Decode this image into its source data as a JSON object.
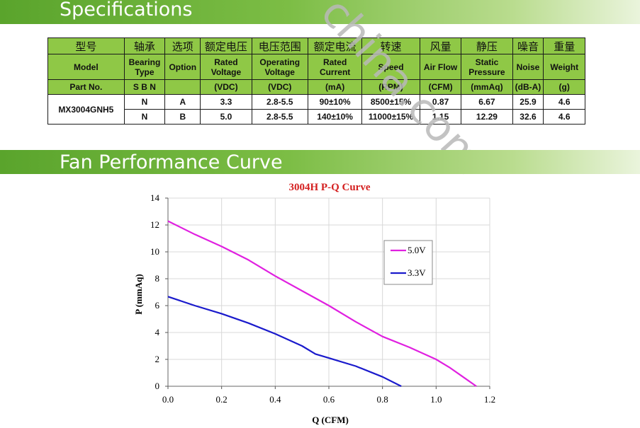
{
  "sections": {
    "specifications": "Specifications",
    "performance": "Fan Performance Curve"
  },
  "table": {
    "header_cn": [
      "型号",
      "轴承",
      "选项",
      "额定电压",
      "电压范围",
      "额定电流",
      "转速",
      "风量",
      "静压",
      "噪音",
      "重量"
    ],
    "header_en": [
      "Model",
      "Bearing Type",
      "Option",
      "Rated Voltage",
      "Operating Voltage",
      "Rated Current",
      "Speed",
      "Air Flow",
      "Static Pressure",
      "Noise",
      "Weight"
    ],
    "header_unit": [
      "Part No.",
      "S B N",
      "",
      "(VDC)",
      "(VDC)",
      "(mA)",
      "(RPM)",
      "(CFM)",
      "(mmAq)",
      "(dB-A)",
      "(g)"
    ],
    "model": "MX3004GNH5",
    "rows": [
      [
        "N",
        "A",
        "3.3",
        "2.8-5.5",
        "90±10%",
        "8500±15%",
        "0.87",
        "6.67",
        "25.9",
        "4.6"
      ],
      [
        "N",
        "B",
        "5.0",
        "2.8-5.5",
        "140±10%",
        "11000±15%",
        "1.15",
        "12.29",
        "32.6",
        "4.6"
      ]
    ]
  },
  "watermark": "china.com",
  "chart_data": {
    "type": "line",
    "title": "3004H P-Q Curve",
    "xlabel": "Q (CFM)",
    "ylabel": "P (mmAq)",
    "xlim": [
      0,
      1.2
    ],
    "ylim": [
      0,
      14
    ],
    "xticks": [
      "0.0",
      "0.2",
      "0.4",
      "0.6",
      "0.8",
      "1.0",
      "1.2"
    ],
    "yticks": [
      "0",
      "2",
      "4",
      "6",
      "8",
      "10",
      "12",
      "14"
    ],
    "grid": true,
    "legend": "right",
    "series": [
      {
        "name": "5.0V",
        "color": "#e020e0",
        "x": [
          0,
          0.1,
          0.2,
          0.3,
          0.4,
          0.5,
          0.6,
          0.7,
          0.8,
          0.9,
          1.0,
          1.05,
          1.1,
          1.15
        ],
        "y": [
          12.29,
          11.3,
          10.4,
          9.4,
          8.2,
          7.1,
          6.0,
          4.8,
          3.7,
          2.9,
          2.0,
          1.4,
          0.7,
          0
        ]
      },
      {
        "name": "3.3V",
        "color": "#1a1acc",
        "x": [
          0,
          0.1,
          0.2,
          0.3,
          0.4,
          0.5,
          0.55,
          0.6,
          0.7,
          0.8,
          0.87
        ],
        "y": [
          6.67,
          6.0,
          5.4,
          4.7,
          3.9,
          3.0,
          2.4,
          2.1,
          1.5,
          0.7,
          0
        ]
      }
    ]
  }
}
